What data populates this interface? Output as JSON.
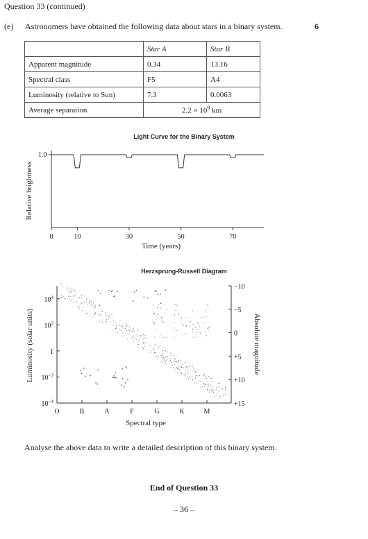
{
  "header": {
    "continued": "Question 33 (continued)"
  },
  "part": {
    "label": "(e)",
    "text": "Astronomers have obtained the following data about stars in a binary system.",
    "marks": "6"
  },
  "table": {
    "headers": [
      "",
      "Star A",
      "Star B"
    ],
    "rows": [
      [
        "Apparent magnitude",
        "0.34",
        "13.16"
      ],
      [
        "Spectral class",
        "F5",
        "A4"
      ],
      [
        "Luminosity (relative to Sun)",
        "7.3",
        "0.0063"
      ]
    ],
    "separation_label": "Average separation",
    "separation_value_prefix": "2.2 × 10",
    "separation_value_exp": "9",
    "separation_value_unit": " km"
  },
  "light_curve": {
    "title": "Light Curve for the Binary System",
    "ylabel": "Relative brightness",
    "xlabel": "Time (years)",
    "y_tick": "1.0",
    "x_ticks": [
      "0",
      "10",
      "30",
      "50",
      "70"
    ],
    "chart_data": {
      "type": "line",
      "x": [
        0,
        8.6,
        9.2,
        10.8,
        11.4,
        28.8,
        29.2,
        30.8,
        31.2,
        48.6,
        49.2,
        50.8,
        51.4,
        68.8,
        69.2,
        70.8,
        71.2,
        82
      ],
      "y": [
        1.0,
        1.0,
        0.82,
        0.82,
        1.0,
        1.0,
        0.96,
        0.96,
        1.0,
        1.0,
        0.82,
        0.82,
        1.0,
        1.0,
        0.96,
        0.96,
        1.0,
        1.0
      ],
      "xlim": [
        0,
        82
      ],
      "ylim": [
        0,
        1.0
      ],
      "xlabel": "Time (years)",
      "ylabel": "Relative brightness",
      "title": "Light Curve for the Binary System"
    }
  },
  "hr": {
    "title": "Herzsprung-Russell Diagram",
    "ylabel_left": "Luminosity (solar units)",
    "ylabel_right": "Absolute magnitude",
    "xlabel": "Spectral type",
    "lum_ticks": [
      {
        "base": "10",
        "exp": "4"
      },
      {
        "base": "10",
        "exp": "2"
      },
      {
        "base": "1",
        "exp": ""
      },
      {
        "base": "10",
        "exp": "−2"
      },
      {
        "base": "10",
        "exp": "−4"
      }
    ],
    "mag_ticks": [
      "−10",
      "−5",
      "0",
      "+5",
      "+10",
      "+15"
    ],
    "spectral_types": [
      "O",
      "B",
      "A",
      "F",
      "G",
      "K",
      "M"
    ]
  },
  "footer": {
    "prompt": "Analyse the above data to write a detailed description of this binary system.",
    "end": "End of Question 33",
    "page": "– 36 –"
  }
}
